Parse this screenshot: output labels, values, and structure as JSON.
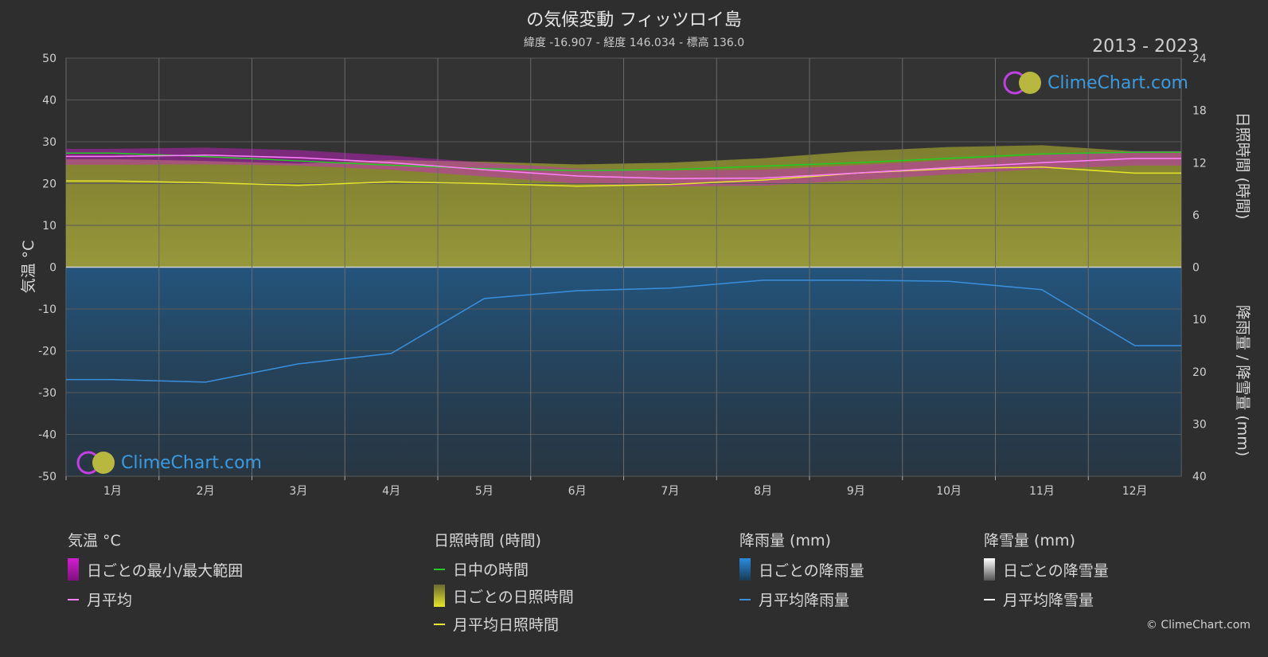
{
  "header": {
    "title": "の気候変動 フィッツロイ島",
    "subtitle": "緯度 -16.907 - 経度 146.034 - 標高 136.0",
    "period": "2013 - 2023"
  },
  "branding": {
    "logo_text": "ClimeChart.com",
    "copyright": "© ClimeChart.com"
  },
  "colors": {
    "background": "#2e2e2e",
    "temp_range": "#d21ed2",
    "temp_avg": "#ff80ff",
    "daylight": "#22cc22",
    "sunshine_fill": "#b0b040",
    "sunshine_avg": "#e6e62a",
    "rain_fill": "#1f5a8c",
    "rain_avg": "#3a8fdc",
    "snow_avg": "#ffffff"
  },
  "chart_data": {
    "type": "line",
    "months": [
      "1月",
      "2月",
      "3月",
      "4月",
      "5月",
      "6月",
      "7月",
      "8月",
      "9月",
      "10月",
      "11月",
      "12月"
    ],
    "axes": {
      "left": {
        "label": "気温 °C",
        "range": [
          -50,
          50
        ],
        "ticks": [
          "50",
          "40",
          "30",
          "20",
          "10",
          "0",
          "-10",
          "-20",
          "-30",
          "-40",
          "-50"
        ]
      },
      "right_top": {
        "label": "日照時間 (時間)",
        "range": [
          0,
          24
        ],
        "ticks": [
          "24",
          "18",
          "12",
          "6",
          "0"
        ]
      },
      "right_bottom": {
        "label": "降雨量 / 降雪量 (mm)",
        "range": [
          0,
          40
        ],
        "ticks": [
          "10",
          "20",
          "30",
          "40"
        ]
      }
    },
    "series": [
      {
        "name": "月平均",
        "unit": "°C",
        "values": [
          26.5,
          26.8,
          26.2,
          25.0,
          23.3,
          21.8,
          21.2,
          21.3,
          22.5,
          23.8,
          25.0,
          26.0
        ]
      },
      {
        "name": "日中の時間",
        "unit": "h",
        "values": [
          13.1,
          12.7,
          12.2,
          11.7,
          11.3,
          11.1,
          11.2,
          11.6,
          12.0,
          12.5,
          13.0,
          13.2
        ]
      },
      {
        "name": "月平均日照時間",
        "unit": "h",
        "values": [
          9.9,
          9.7,
          9.4,
          9.8,
          9.6,
          9.3,
          9.5,
          10.0,
          10.8,
          11.3,
          11.5,
          10.8
        ]
      },
      {
        "name": "月平均降雨量",
        "unit": "mm",
        "values": [
          21.5,
          22.0,
          18.5,
          16.5,
          6.0,
          4.5,
          4.0,
          2.5,
          2.5,
          2.7,
          4.3,
          15.0
        ]
      },
      {
        "name": "月平均降雪量",
        "unit": "mm",
        "values": [
          0,
          0,
          0,
          0,
          0,
          0,
          0,
          0,
          0,
          0,
          0,
          0
        ]
      }
    ],
    "temp_range_band": {
      "min": [
        24.5,
        24.6,
        24.3,
        23.3,
        21.7,
        20.0,
        19.3,
        19.5,
        20.8,
        22.2,
        23.5,
        24.3
      ],
      "max": [
        28.3,
        28.6,
        28.0,
        26.7,
        25.0,
        23.6,
        23.1,
        23.3,
        24.4,
        25.6,
        26.8,
        27.8
      ]
    }
  },
  "legend": {
    "temp": {
      "header": "気温 °C",
      "items": [
        "日ごとの最小/最大範囲",
        "月平均"
      ]
    },
    "sun": {
      "header": "日照時間 (時間)",
      "items": [
        "日中の時間",
        "日ごとの日照時間",
        "月平均日照時間"
      ]
    },
    "rain": {
      "header": "降雨量 (mm)",
      "items": [
        "日ごとの降雨量",
        "月平均降雨量"
      ]
    },
    "snow": {
      "header": "降雪量 (mm)",
      "items": [
        "日ごとの降雪量",
        "月平均降雪量"
      ]
    }
  }
}
